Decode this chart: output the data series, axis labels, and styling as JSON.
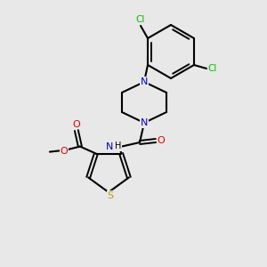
{
  "bg_color": "#e8e8e8",
  "bond_color": "#000000",
  "atom_colors": {
    "N": "#0000cc",
    "O": "#dd0000",
    "S": "#b8a000",
    "Cl": "#00bb00",
    "H": "#000000",
    "C": "#000000"
  },
  "figsize": [
    3.0,
    3.0
  ],
  "dpi": 100
}
